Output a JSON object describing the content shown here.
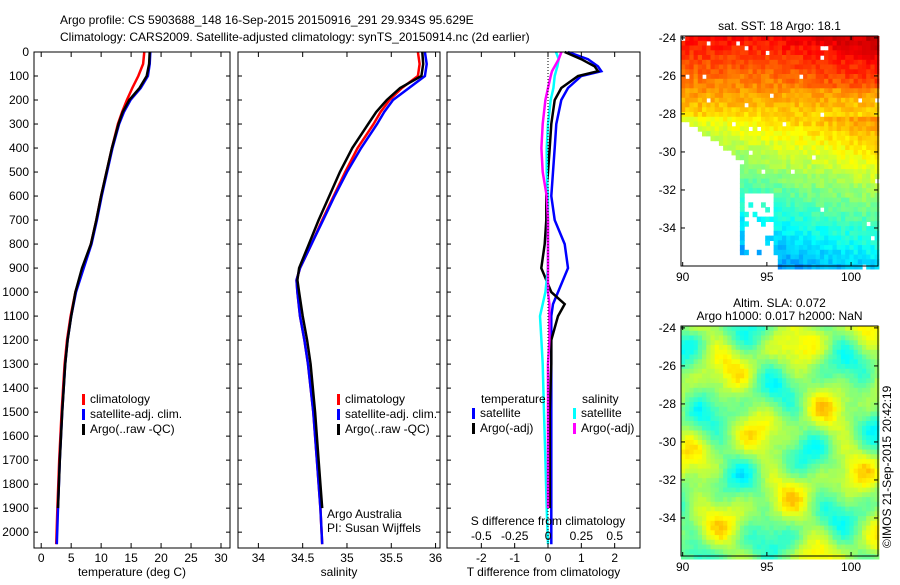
{
  "header": {
    "title_line1": "Argo profile: CS 5903688_148 16-Sep-2015 20150916_291 29.934S 95.629E",
    "title_line2": "Climatology: CARS2009. Satellite-adjusted climatology: synTS_20150914.nc (2d earlier)"
  },
  "credit": "©IMOS 21-Sep-2015 20:42:19",
  "colors": {
    "climatology": "#ff0000",
    "satellite": "#0000ff",
    "argo": "#000000",
    "sal_satellite": "#00ffff",
    "sal_argo": "#ff00ff"
  },
  "chart_data": [
    {
      "type": "line",
      "id": "temperature",
      "xlabel": "temperature (deg C)",
      "ylabel": "",
      "xlim": [
        -1.2,
        31.5
      ],
      "ylim": [
        2066,
        0
      ],
      "xticks": [
        0,
        5,
        10,
        15,
        20,
        25,
        30
      ],
      "yticks": [
        0,
        100,
        200,
        300,
        400,
        500,
        600,
        700,
        800,
        900,
        1000,
        1100,
        1200,
        1300,
        1400,
        1500,
        1600,
        1700,
        1800,
        1900,
        2000
      ],
      "legend": [
        "climatology",
        "satellite-adj. clim.",
        "Argo(..raw -QC)"
      ],
      "depth": [
        0,
        50,
        100,
        150,
        200,
        250,
        300,
        400,
        500,
        600,
        700,
        800,
        900,
        1000,
        1100,
        1200,
        1300,
        1500,
        1700,
        1900,
        2050
      ],
      "series": [
        {
          "name": "climatology",
          "values": [
            17.2,
            17.0,
            16.2,
            15.2,
            14.3,
            13.5,
            12.8,
            11.8,
            10.9,
            10.0,
            9.2,
            8.3,
            7.0,
            5.7,
            4.9,
            4.3,
            3.9,
            3.4,
            3.0,
            2.7,
            2.5
          ]
        },
        {
          "name": "satellite-adj. clim.",
          "values": [
            18.2,
            18.1,
            17.8,
            16.6,
            14.9,
            13.8,
            13.0,
            11.9,
            11.0,
            10.1,
            9.3,
            8.4,
            7.1,
            5.8,
            5.0,
            4.4,
            4.0,
            3.5,
            3.1,
            2.8,
            2.6
          ]
        },
        {
          "name": "Argo(..raw -QC)",
          "values": [
            18.1,
            18.0,
            17.6,
            16.4,
            14.7,
            13.6,
            12.9,
            11.8,
            10.9,
            10.0,
            9.2,
            8.3,
            6.8,
            5.7,
            5.0,
            4.4,
            4.0,
            3.5,
            3.1,
            2.8,
            null
          ]
        }
      ]
    },
    {
      "type": "line",
      "id": "salinity",
      "xlabel": "salinity",
      "xlim": [
        33.77,
        36.05
      ],
      "ylim": [
        2066,
        0
      ],
      "xticks": [
        34,
        34.5,
        35,
        35.5,
        36
      ],
      "legend": [
        "climatology",
        "satellite-adj. clim.",
        "Argo(..raw -QC)"
      ],
      "annotation": [
        "Argo Australia",
        "PI: Susan Wijffels"
      ],
      "depth": [
        0,
        50,
        100,
        150,
        200,
        250,
        300,
        400,
        500,
        600,
        700,
        800,
        900,
        950,
        1000,
        1100,
        1200,
        1300,
        1500,
        1700,
        1900,
        2050
      ],
      "series": [
        {
          "name": "climatology",
          "values": [
            35.8,
            35.82,
            35.8,
            35.62,
            35.48,
            35.38,
            35.3,
            35.12,
            34.98,
            34.85,
            34.72,
            34.6,
            34.47,
            34.43,
            34.44,
            34.47,
            34.52,
            34.56,
            34.62,
            34.66,
            34.7,
            34.72
          ]
        },
        {
          "name": "satellite-adj. clim.",
          "values": [
            35.88,
            35.9,
            35.88,
            35.7,
            35.52,
            35.42,
            35.34,
            35.16,
            35.0,
            34.86,
            34.73,
            34.6,
            34.47,
            34.43,
            34.44,
            34.47,
            34.52,
            34.56,
            34.62,
            34.66,
            34.7,
            34.72
          ]
        },
        {
          "name": "Argo(..raw -QC)",
          "values": [
            35.85,
            35.86,
            35.84,
            35.6,
            35.45,
            35.33,
            35.24,
            35.06,
            34.92,
            34.8,
            34.68,
            34.57,
            34.46,
            34.44,
            34.46,
            34.5,
            34.55,
            34.59,
            34.64,
            34.68,
            34.72,
            null
          ]
        }
      ]
    },
    {
      "type": "line",
      "id": "differences",
      "xlabel": "T difference from climatology",
      "xlim": [
        -3.03,
        2.76
      ],
      "x2label": "S difference from climatology",
      "x2lim": [
        -0.758,
        0.69
      ],
      "xticks": [
        -2,
        -1,
        0,
        1,
        2
      ],
      "x2ticks": [
        -0.5,
        -0.25,
        0,
        0.25,
        0.5
      ],
      "ylim": [
        2066,
        0
      ],
      "legend_titles": [
        "temperature",
        "salinity"
      ],
      "legend": [
        "satellite",
        "Argo(-adj)",
        "satellite",
        "Argo(-adj)"
      ],
      "depth": [
        0,
        30,
        60,
        80,
        100,
        150,
        200,
        300,
        400,
        500,
        600,
        700,
        800,
        900,
        1000,
        1050,
        1100,
        1200,
        1300,
        1500,
        1700,
        1900,
        2050
      ],
      "series": [
        {
          "name": "T satellite",
          "axis": "T",
          "values": [
            0.6,
            1.2,
            1.5,
            1.6,
            1.0,
            0.6,
            0.4,
            0.25,
            0.2,
            0.15,
            0.1,
            0.2,
            0.5,
            0.6,
            0.3,
            0.15,
            0.1,
            0.1,
            0.1,
            0.1,
            0.1,
            0.1,
            0.1
          ]
        },
        {
          "name": "T Argo(-adj)",
          "axis": "T",
          "values": [
            0.5,
            1.0,
            1.4,
            1.5,
            0.9,
            0.4,
            0.2,
            0.1,
            0.05,
            0.0,
            -0.05,
            -0.05,
            -0.1,
            -0.2,
            0.1,
            0.5,
            0.3,
            0.1,
            0.1,
            0.05,
            0.05,
            0.05,
            null
          ]
        },
        {
          "name": "S satellite",
          "axis": "S",
          "values": [
            0.06,
            0.08,
            0.07,
            0.06,
            0.05,
            0.04,
            0.02,
            0.0,
            -0.01,
            -0.01,
            0.0,
            0.0,
            0.0,
            0.0,
            -0.02,
            -0.04,
            -0.06,
            -0.05,
            -0.04,
            -0.03,
            -0.02,
            -0.01,
            0.0
          ]
        },
        {
          "name": "S Argo(-adj)",
          "axis": "S",
          "values": [
            0.1,
            0.08,
            0.05,
            0.03,
            0.02,
            0.0,
            -0.02,
            -0.04,
            -0.05,
            -0.04,
            -0.01,
            0.0,
            0.0,
            0.0,
            0.0,
            0.01,
            0.01,
            0.01,
            0.0,
            0.0,
            0.0,
            0.0,
            null
          ]
        }
      ]
    },
    {
      "type": "heatmap",
      "id": "sst-map",
      "title": "sat. SST: 18 Argo: 18.1",
      "xlim": [
        89.9,
        101.6
      ],
      "ylim": [
        -36.0,
        -23.9
      ],
      "xticks": [
        90,
        95,
        100
      ],
      "yticks": [
        -24,
        -26,
        -28,
        -30,
        -32,
        -34
      ]
    },
    {
      "type": "heatmap",
      "id": "sla-map",
      "title_line1": "Altim. SLA: 0.072",
      "title_line2": "Argo h1000: 0.017 h2000: NaN",
      "xlim": [
        89.9,
        101.6
      ],
      "ylim": [
        -36.0,
        -23.9
      ],
      "xticks": [
        90,
        95,
        100
      ],
      "yticks": [
        -24,
        -26,
        -28,
        -30,
        -32,
        -34
      ]
    }
  ]
}
